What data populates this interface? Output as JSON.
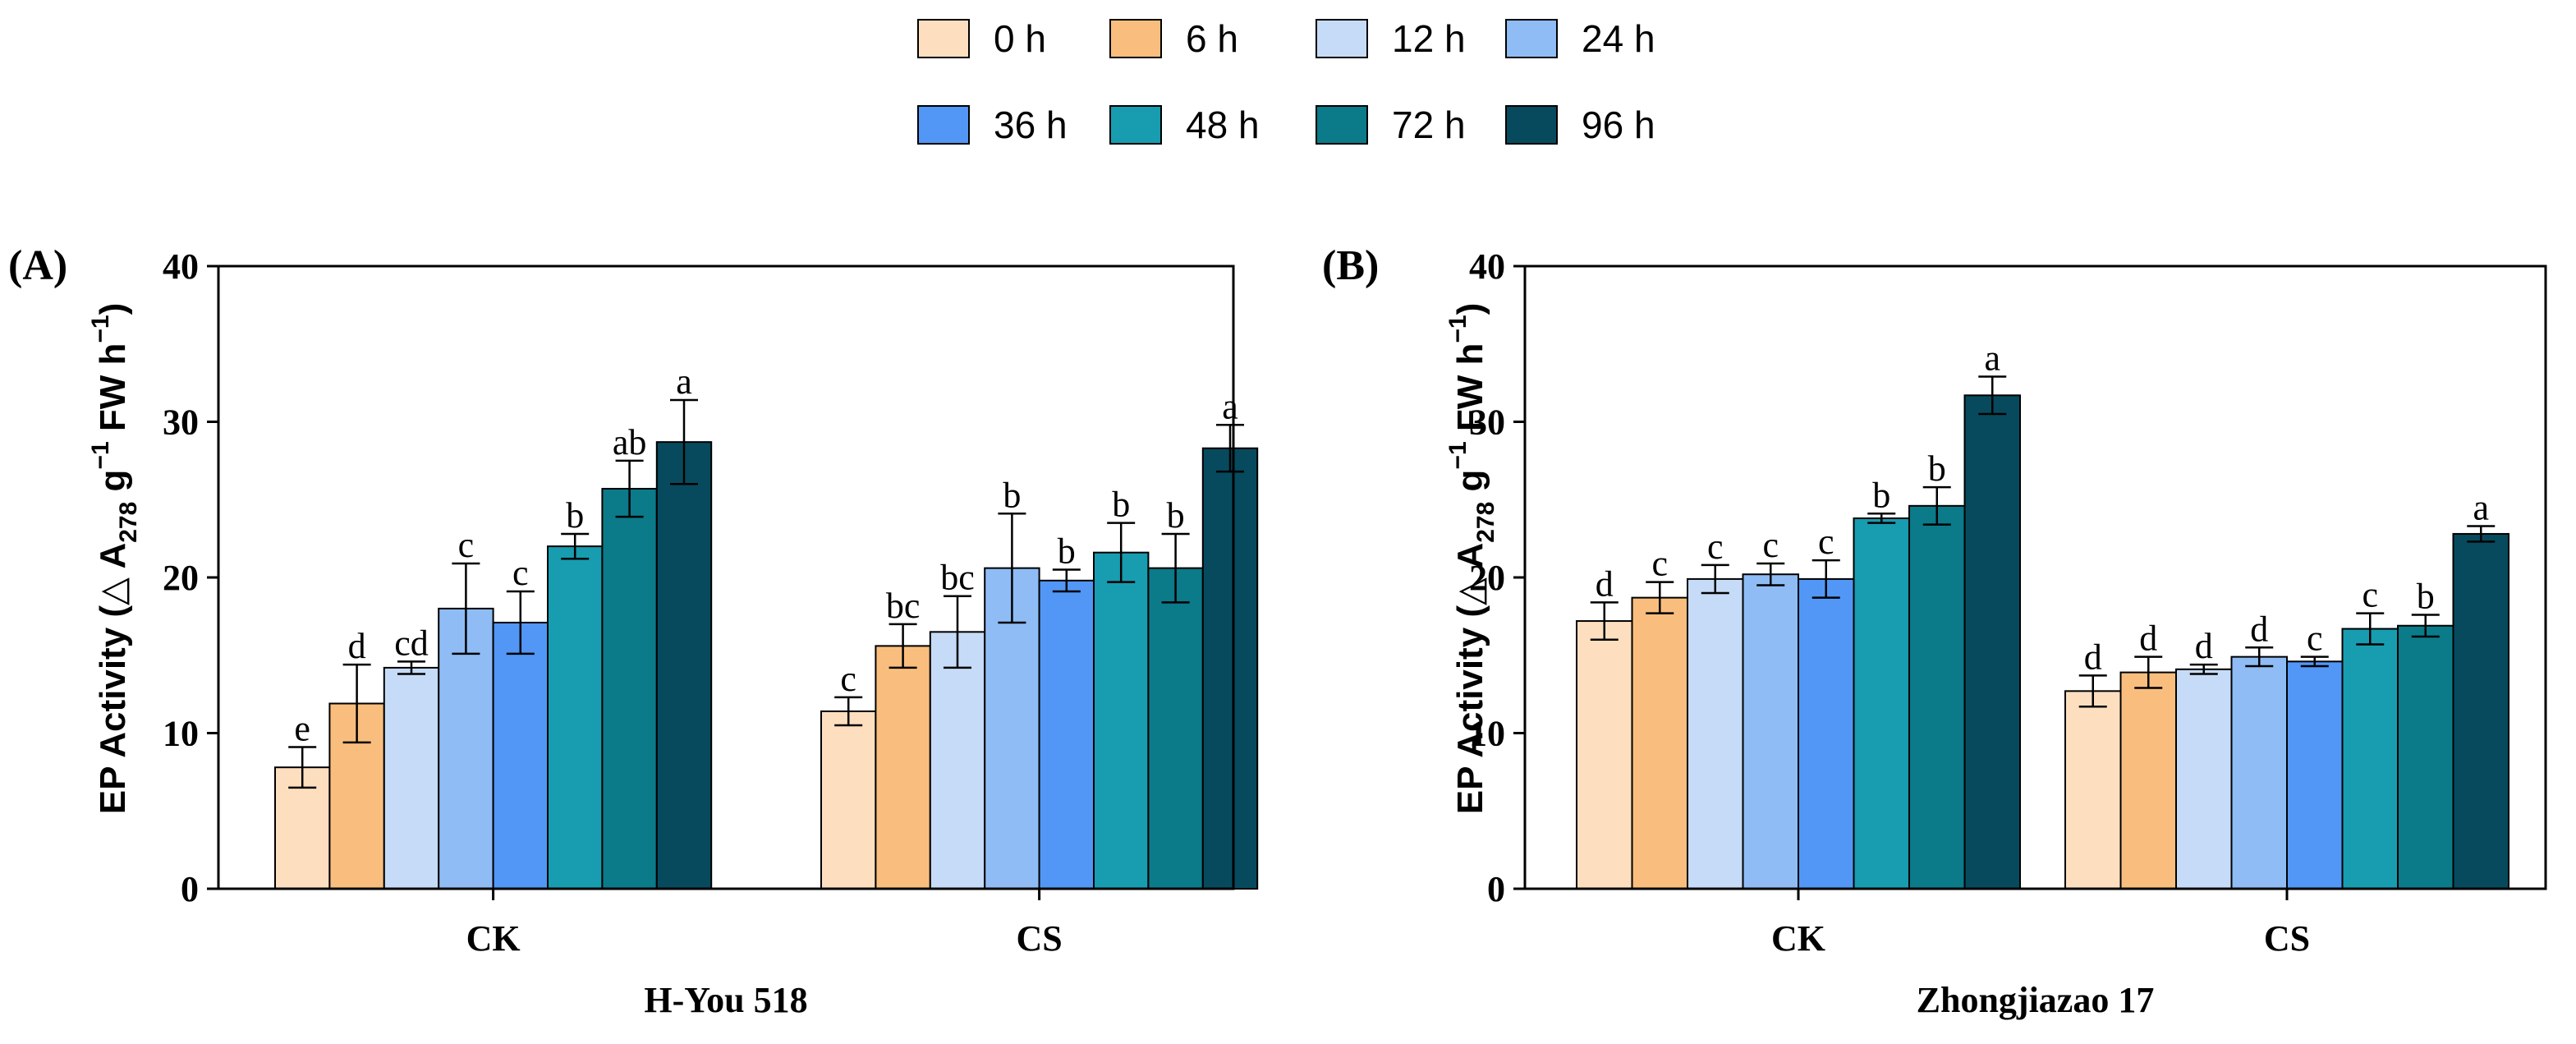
{
  "legend": {
    "entries": [
      {
        "label": "0 h",
        "color": "#FDDFC0"
      },
      {
        "label": "6 h",
        "color": "#F9BE7E"
      },
      {
        "label": "12 h",
        "color": "#C6DBF7"
      },
      {
        "label": "24 h",
        "color": "#8FBCF5"
      },
      {
        "label": "36 h",
        "color": "#5297F6"
      },
      {
        "label": "48 h",
        "color": "#189CB0"
      },
      {
        "label": "72 h",
        "color": "#0B7A89"
      },
      {
        "label": "96 h",
        "color": "#074A5E"
      }
    ]
  },
  "chart_data": [
    {
      "type": "bar",
      "panel_label": "(A)",
      "title": "",
      "xlabel": "H-You 518",
      "ylabel": "EP Activity (△ A278 g−1 FW h−1)",
      "ylabel_parts": {
        "pre": "EP Activity (△ A",
        "sub": "278",
        "mid1": " g",
        "sup1": "−1",
        "mid2": " FW h",
        "sup2": "−1",
        "post": ")"
      },
      "ylim": [
        0,
        40
      ],
      "yticks": [
        "0",
        "10",
        "20",
        "30",
        "40"
      ],
      "categories": [
        "CK",
        "CS"
      ],
      "series": [
        {
          "name": "0 h",
          "values": [
            7.8,
            11.4
          ],
          "errors": [
            1.3,
            0.9
          ],
          "letters": [
            "e",
            "c"
          ]
        },
        {
          "name": "6 h",
          "values": [
            11.9,
            15.6
          ],
          "errors": [
            2.5,
            1.4
          ],
          "letters": [
            "d",
            "bc"
          ]
        },
        {
          "name": "12 h",
          "values": [
            14.2,
            16.5
          ],
          "errors": [
            0.4,
            2.3
          ],
          "letters": [
            "cd",
            "bc"
          ]
        },
        {
          "name": "24 h",
          "values": [
            18.0,
            20.6
          ],
          "errors": [
            2.9,
            3.5
          ],
          "letters": [
            "c",
            "b"
          ]
        },
        {
          "name": "36 h",
          "values": [
            17.1,
            19.8
          ],
          "errors": [
            2.0,
            0.7
          ],
          "letters": [
            "c",
            "b"
          ]
        },
        {
          "name": "48 h",
          "values": [
            22.0,
            21.6
          ],
          "errors": [
            0.8,
            1.9
          ],
          "letters": [
            "b",
            "b"
          ]
        },
        {
          "name": "72 h",
          "values": [
            25.7,
            20.6
          ],
          "errors": [
            1.8,
            2.2
          ],
          "letters": [
            "ab",
            "b"
          ]
        },
        {
          "name": "96 h",
          "values": [
            28.7,
            28.3
          ],
          "errors": [
            2.7,
            1.5
          ],
          "letters": [
            "a",
            "a"
          ]
        }
      ]
    },
    {
      "type": "bar",
      "panel_label": "(B)",
      "title": "",
      "xlabel": "Zhongjiazao 17",
      "ylabel": "EP Activity (△ A278 g−1 FW h−1)",
      "ylabel_parts": {
        "pre": "EP Activity (△ A",
        "sub": "278",
        "mid1": " g",
        "sup1": "−1",
        "mid2": " FW h",
        "sup2": "−1",
        "post": ")"
      },
      "ylim": [
        0,
        40
      ],
      "yticks": [
        "0",
        "10",
        "20",
        "30",
        "40"
      ],
      "categories": [
        "CK",
        "CS"
      ],
      "series": [
        {
          "name": "0 h",
          "values": [
            17.2,
            12.7
          ],
          "errors": [
            1.2,
            1.0
          ],
          "letters": [
            "d",
            "d"
          ]
        },
        {
          "name": "6 h",
          "values": [
            18.7,
            13.9
          ],
          "errors": [
            1.0,
            1.0
          ],
          "letters": [
            "c",
            "d"
          ]
        },
        {
          "name": "12 h",
          "values": [
            19.9,
            14.1
          ],
          "errors": [
            0.9,
            0.3
          ],
          "letters": [
            "c",
            "d"
          ]
        },
        {
          "name": "24 h",
          "values": [
            20.2,
            14.9
          ],
          "errors": [
            0.7,
            0.6
          ],
          "letters": [
            "c",
            "d"
          ]
        },
        {
          "name": "36 h",
          "values": [
            19.9,
            14.6
          ],
          "errors": [
            1.2,
            0.3
          ],
          "letters": [
            "c",
            "c"
          ]
        },
        {
          "name": "48 h",
          "values": [
            23.8,
            16.7
          ],
          "errors": [
            0.3,
            1.0
          ],
          "letters": [
            "b",
            "c"
          ]
        },
        {
          "name": "72 h",
          "values": [
            24.6,
            16.9
          ],
          "errors": [
            1.2,
            0.7
          ],
          "letters": [
            "b",
            "b"
          ]
        },
        {
          "name": "96 h",
          "values": [
            31.7,
            22.8
          ],
          "errors": [
            1.2,
            0.5
          ],
          "letters": [
            "a",
            "a"
          ]
        }
      ]
    }
  ]
}
